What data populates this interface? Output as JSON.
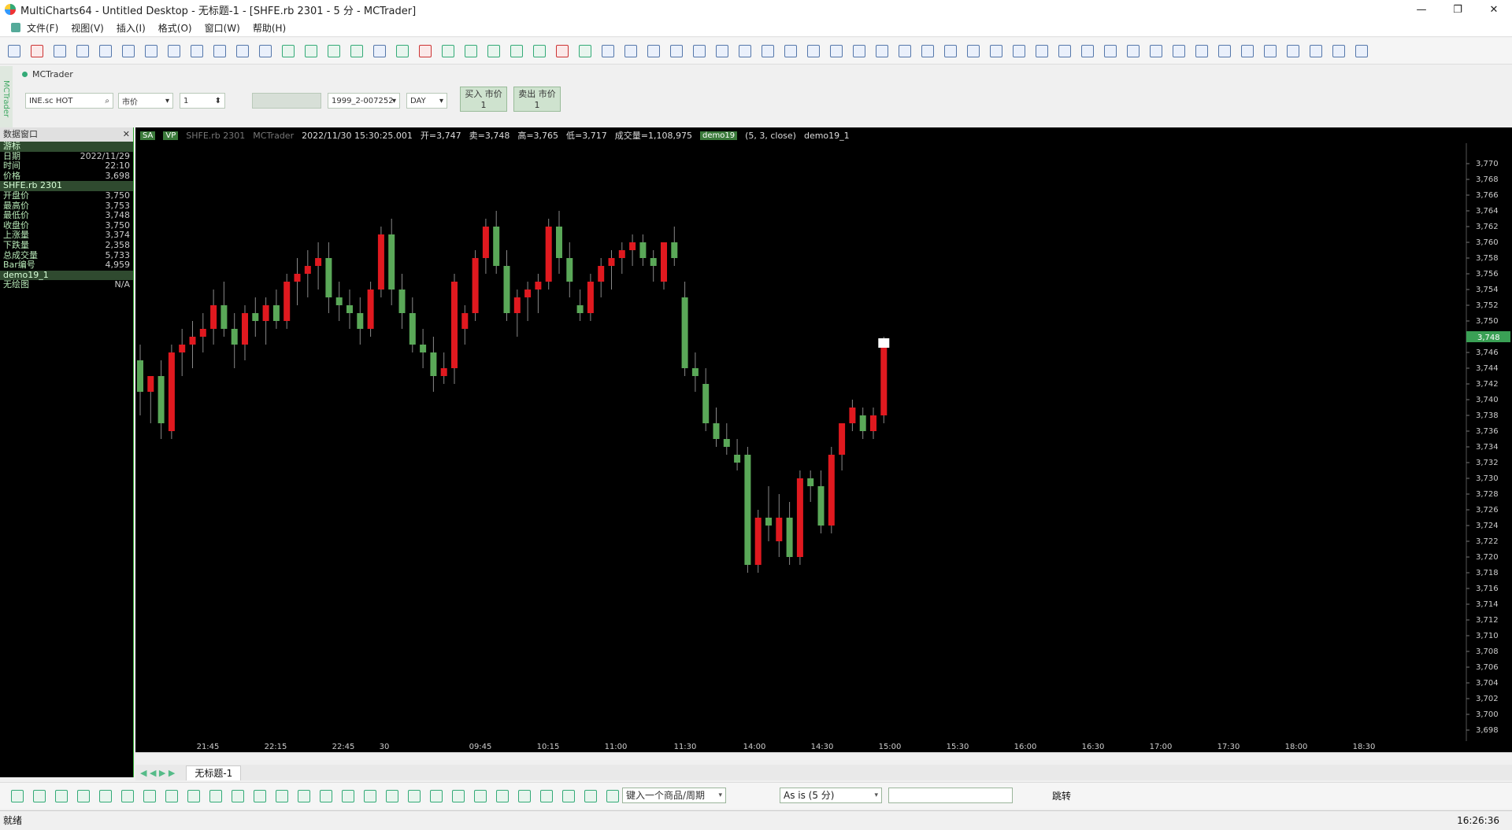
{
  "window": {
    "title": "MultiCharts64 - Untitled Desktop - 无标题-1 - [SHFE.rb 2301 - 5 分 - MCTrader]",
    "controls": [
      "—",
      "❐",
      "✕"
    ]
  },
  "menu": {
    "items": [
      "文件(F)",
      "视图(V)",
      "插入(I)",
      "格式(O)",
      "窗口(W)",
      "帮助(H)"
    ]
  },
  "trade_bar": {
    "panel_title": "MCTrader",
    "symbol": "INE.sc HOT",
    "order_type": "市价",
    "quantity": "1",
    "account": "1999_2-007252",
    "tif": "DAY",
    "buy_label": "买入 市价",
    "buy_qty": "1",
    "sell_label": "卖出 市价",
    "sell_qty": "1"
  },
  "data_window": {
    "title": "数据窗口",
    "rows": [
      {
        "label": "游标",
        "value": "",
        "header": true
      },
      {
        "label": "日期",
        "value": "2022/11/29"
      },
      {
        "label": "时间",
        "value": "22:10"
      },
      {
        "label": "价格",
        "value": "3,698"
      },
      {
        "label": "SHFE.rb 2301",
        "value": "",
        "header": true
      },
      {
        "label": "开盘价",
        "value": "3,750"
      },
      {
        "label": "最高价",
        "value": "3,753"
      },
      {
        "label": "最低价",
        "value": "3,748"
      },
      {
        "label": "收盘价",
        "value": "3,750"
      },
      {
        "label": "上涨量",
        "value": "3,374"
      },
      {
        "label": "下跌量",
        "value": "2,358"
      },
      {
        "label": "总成交量",
        "value": "5,733"
      },
      {
        "label": "Bar编号",
        "value": "4,959"
      },
      {
        "label": "demo19_1",
        "value": "",
        "header": true
      },
      {
        "label": "无绘图",
        "value": "N/A"
      }
    ]
  },
  "chart_status": {
    "tag1": "SA",
    "tag2": "VP",
    "symbol": "SHFE.rb 2301",
    "feed": "MCTrader",
    "datetime": "2022/11/30 15:30:25.001",
    "open": "开=3,747",
    "close": "卖=3,748",
    "high": "高=3,765",
    "low": "低=3,717",
    "volume": "成交量=1,108,975",
    "study": "demo19",
    "study_params": "(5, 3, close)",
    "study2": "demo19_1"
  },
  "chart_data": {
    "type": "candlestick",
    "y_ticks": [
      "3,770",
      "3,768",
      "3,766",
      "3,764",
      "3,762",
      "3,760",
      "3,758",
      "3,756",
      "3,754",
      "3,752",
      "3,750",
      "3,748",
      "3,746",
      "3,744",
      "3,742",
      "3,740",
      "3,738",
      "3,736",
      "3,734",
      "3,732",
      "3,730",
      "3,728",
      "3,726",
      "3,724",
      "3,722",
      "3,720",
      "3,718",
      "3,716",
      "3,714",
      "3,712",
      "3,710",
      "3,708",
      "3,706",
      "3,704",
      "3,702",
      "3,700",
      "3,698"
    ],
    "ylim": [
      3698,
      3770
    ],
    "x_ticks": [
      "21:45",
      "22:15",
      "22:45",
      "30",
      "09:45",
      "10:15",
      "11:00",
      "11:30",
      "14:00",
      "14:30",
      "15:00",
      "15:30",
      "16:00",
      "16:30",
      "17:00",
      "17:30",
      "18:00",
      "18:30"
    ],
    "price_marker": "3,748",
    "up_color": "#e0191f",
    "down_color": "#5aa858",
    "candles": [
      {
        "o": 3745,
        "h": 3747,
        "l": 3738,
        "c": 3741
      },
      {
        "o": 3741,
        "h": 3743,
        "l": 3737,
        "c": 3743
      },
      {
        "o": 3743,
        "h": 3745,
        "l": 3735,
        "c": 3737
      },
      {
        "o": 3736,
        "h": 3747,
        "l": 3735,
        "c": 3746
      },
      {
        "o": 3746,
        "h": 3749,
        "l": 3743,
        "c": 3747
      },
      {
        "o": 3747,
        "h": 3750,
        "l": 3744,
        "c": 3748
      },
      {
        "o": 3748,
        "h": 3751,
        "l": 3746,
        "c": 3749
      },
      {
        "o": 3749,
        "h": 3754,
        "l": 3747,
        "c": 3752
      },
      {
        "o": 3752,
        "h": 3755,
        "l": 3748,
        "c": 3749
      },
      {
        "o": 3749,
        "h": 3751,
        "l": 3744,
        "c": 3747
      },
      {
        "o": 3747,
        "h": 3752,
        "l": 3745,
        "c": 3751
      },
      {
        "o": 3751,
        "h": 3753,
        "l": 3748,
        "c": 3750
      },
      {
        "o": 3750,
        "h": 3753,
        "l": 3747,
        "c": 3752
      },
      {
        "o": 3752,
        "h": 3754,
        "l": 3749,
        "c": 3750
      },
      {
        "o": 3750,
        "h": 3756,
        "l": 3749,
        "c": 3755
      },
      {
        "o": 3755,
        "h": 3758,
        "l": 3752,
        "c": 3756
      },
      {
        "o": 3756,
        "h": 3759,
        "l": 3753,
        "c": 3757
      },
      {
        "o": 3757,
        "h": 3760,
        "l": 3754,
        "c": 3758
      },
      {
        "o": 3758,
        "h": 3760,
        "l": 3751,
        "c": 3753
      },
      {
        "o": 3753,
        "h": 3755,
        "l": 3750,
        "c": 3752
      },
      {
        "o": 3752,
        "h": 3754,
        "l": 3749,
        "c": 3751
      },
      {
        "o": 3751,
        "h": 3753,
        "l": 3747,
        "c": 3749
      },
      {
        "o": 3749,
        "h": 3755,
        "l": 3748,
        "c": 3754
      },
      {
        "o": 3754,
        "h": 3762,
        "l": 3753,
        "c": 3761
      },
      {
        "o": 3761,
        "h": 3763,
        "l": 3752,
        "c": 3754
      },
      {
        "o": 3754,
        "h": 3756,
        "l": 3749,
        "c": 3751
      },
      {
        "o": 3751,
        "h": 3753,
        "l": 3746,
        "c": 3747
      },
      {
        "o": 3747,
        "h": 3749,
        "l": 3744,
        "c": 3746
      },
      {
        "o": 3746,
        "h": 3748,
        "l": 3741,
        "c": 3743
      },
      {
        "o": 3743,
        "h": 3746,
        "l": 3742,
        "c": 3744
      },
      {
        "o": 3744,
        "h": 3756,
        "l": 3742,
        "c": 3755
      },
      {
        "o": 3749,
        "h": 3752,
        "l": 3747,
        "c": 3751
      },
      {
        "o": 3751,
        "h": 3759,
        "l": 3750,
        "c": 3758
      },
      {
        "o": 3758,
        "h": 3763,
        "l": 3756,
        "c": 3762
      },
      {
        "o": 3762,
        "h": 3764,
        "l": 3756,
        "c": 3757
      },
      {
        "o": 3757,
        "h": 3759,
        "l": 3750,
        "c": 3751
      },
      {
        "o": 3751,
        "h": 3754,
        "l": 3748,
        "c": 3753
      },
      {
        "o": 3753,
        "h": 3755,
        "l": 3750,
        "c": 3754
      },
      {
        "o": 3754,
        "h": 3756,
        "l": 3751,
        "c": 3755
      },
      {
        "o": 3755,
        "h": 3763,
        "l": 3754,
        "c": 3762
      },
      {
        "o": 3762,
        "h": 3764,
        "l": 3756,
        "c": 3758
      },
      {
        "o": 3758,
        "h": 3760,
        "l": 3753,
        "c": 3755
      },
      {
        "o": 3752,
        "h": 3754,
        "l": 3750,
        "c": 3751
      },
      {
        "o": 3751,
        "h": 3756,
        "l": 3750,
        "c": 3755
      },
      {
        "o": 3755,
        "h": 3758,
        "l": 3753,
        "c": 3757
      },
      {
        "o": 3757,
        "h": 3759,
        "l": 3754,
        "c": 3758
      },
      {
        "o": 3758,
        "h": 3760,
        "l": 3756,
        "c": 3759
      },
      {
        "o": 3759,
        "h": 3761,
        "l": 3757,
        "c": 3760
      },
      {
        "o": 3760,
        "h": 3761,
        "l": 3757,
        "c": 3758
      },
      {
        "o": 3758,
        "h": 3759,
        "l": 3755,
        "c": 3757
      },
      {
        "o": 3755,
        "h": 3760,
        "l": 3754,
        "c": 3760
      },
      {
        "o": 3760,
        "h": 3762,
        "l": 3757,
        "c": 3758
      },
      {
        "o": 3753,
        "h": 3755,
        "l": 3743,
        "c": 3744
      },
      {
        "o": 3744,
        "h": 3746,
        "l": 3741,
        "c": 3743
      },
      {
        "o": 3742,
        "h": 3744,
        "l": 3736,
        "c": 3737
      },
      {
        "o": 3737,
        "h": 3739,
        "l": 3734,
        "c": 3735
      },
      {
        "o": 3735,
        "h": 3737,
        "l": 3733,
        "c": 3734
      },
      {
        "o": 3733,
        "h": 3735,
        "l": 3731,
        "c": 3732
      },
      {
        "o": 3733,
        "h": 3734,
        "l": 3718,
        "c": 3719
      },
      {
        "o": 3719,
        "h": 3726,
        "l": 3718,
        "c": 3725
      },
      {
        "o": 3725,
        "h": 3729,
        "l": 3722,
        "c": 3724
      },
      {
        "o": 3722,
        "h": 3728,
        "l": 3720,
        "c": 3725
      },
      {
        "o": 3725,
        "h": 3727,
        "l": 3719,
        "c": 3720
      },
      {
        "o": 3720,
        "h": 3731,
        "l": 3719,
        "c": 3730
      },
      {
        "o": 3730,
        "h": 3731,
        "l": 3727,
        "c": 3729
      },
      {
        "o": 3729,
        "h": 3731,
        "l": 3723,
        "c": 3724
      },
      {
        "o": 3724,
        "h": 3734,
        "l": 3723,
        "c": 3733
      },
      {
        "o": 3733,
        "h": 3737,
        "l": 3731,
        "c": 3737
      },
      {
        "o": 3737,
        "h": 3740,
        "l": 3736,
        "c": 3739
      },
      {
        "o": 3738,
        "h": 3739,
        "l": 3735,
        "c": 3736
      },
      {
        "o": 3736,
        "h": 3739,
        "l": 3735,
        "c": 3738
      },
      {
        "o": 3738,
        "h": 3748,
        "l": 3737,
        "c": 3747
      }
    ]
  },
  "tabs": {
    "nav": "◀ ◀ ▶ ▶",
    "active": "无标题-1"
  },
  "bottom_toolbar": {
    "symbol_input_placeholder": "键入一个商品/周期",
    "resolution": "As is (5 分)",
    "jump_label": "跳转"
  },
  "statusbar": {
    "left": "就绪",
    "time": "16:26:36"
  }
}
